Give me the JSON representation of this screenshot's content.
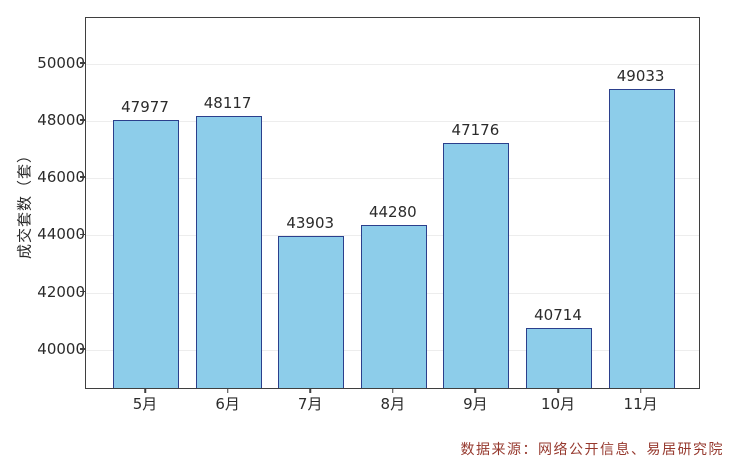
{
  "chart_data": {
    "type": "bar",
    "categories": [
      "5月",
      "6月",
      "7月",
      "8月",
      "9月",
      "10月",
      "11月"
    ],
    "values": [
      47977,
      48117,
      43903,
      44280,
      47176,
      40714,
      49033
    ],
    "title": "",
    "xlabel": "",
    "ylabel": "成交套数（套）",
    "yticks": [
      40000,
      42000,
      44000,
      46000,
      48000,
      50000
    ],
    "ylim": [
      38600,
      51600
    ],
    "grid": "horizontal-major",
    "legend": "none",
    "bar_fill_color": "#8dcdea",
    "bar_border_color": "#2b3f8c",
    "axis_color": "#3f3f3f",
    "gridline_color": "#ededed",
    "label_color": "#2b2b2b",
    "source_note": "数据来源：网络公开信息、易居研究院",
    "source_note_color": "#96392e"
  }
}
